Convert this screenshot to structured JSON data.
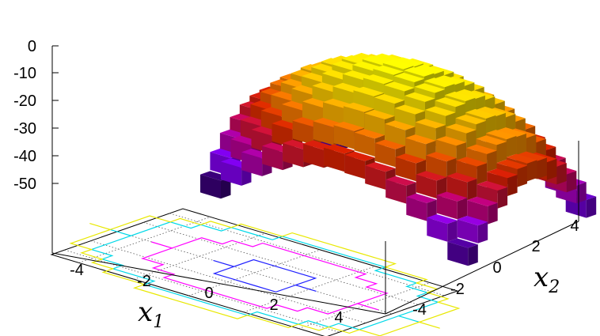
{
  "chart_data": {
    "type": "surface-3d-bars",
    "title": "",
    "xlabel": "x",
    "xlabel_sub": "1",
    "ylabel": "x",
    "ylabel_sub": "2",
    "zlabel": "",
    "x_ticks": [
      "-4",
      "-2",
      "0",
      "2",
      "4"
    ],
    "y_ticks": [
      "-4",
      "-2",
      "0",
      "2",
      "4"
    ],
    "z_ticks": [
      "0",
      "-10",
      "-20",
      "-30",
      "-40",
      "-50"
    ],
    "xlim": [
      -5,
      5
    ],
    "ylim": [
      -5,
      5
    ],
    "zlim": [
      -50,
      0
    ],
    "grid_step": 0.75,
    "surface_function": "z = -(x1^2 + x2^2)",
    "colormap": [
      "#000000",
      "#3a007a",
      "#8a00ff",
      "#c6007a",
      "#dd2200",
      "#ff8a00",
      "#ffd800",
      "#ffff00"
    ],
    "grid": true,
    "contour_levels": [
      {
        "level": -2,
        "color": "#2020ff"
      },
      {
        "level": -12,
        "color": "#ff00ff"
      },
      {
        "level": -25,
        "color": "#00d8e8"
      },
      {
        "level": -34,
        "color": "#e8e800"
      }
    ]
  }
}
